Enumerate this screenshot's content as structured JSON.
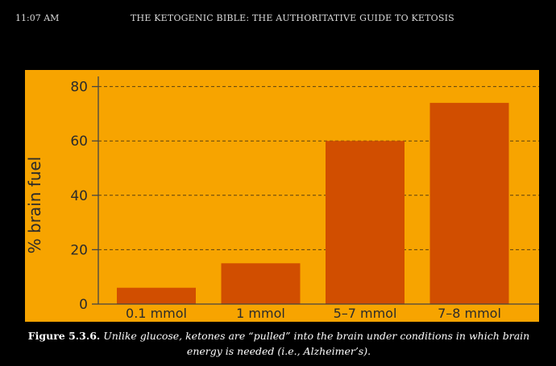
{
  "status_bar": {
    "time": "11:07 AM",
    "book_title": "THE KETOGENIC BIBLE: THE AUTHORITATIVE GUIDE TO KETOSIS"
  },
  "colors": {
    "page_background": "#000000",
    "chart_background": "#f7a400",
    "bar": "#d14e00",
    "text": "#2b2b2b"
  },
  "chart_data": {
    "type": "bar",
    "categories": [
      "0.1 mmol",
      "1 mmol",
      "5–7 mmol",
      "7–8 mmol"
    ],
    "values": [
      6,
      15,
      60,
      74
    ],
    "ylabel": "% brain fuel",
    "ylim": [
      0,
      85
    ],
    "yticks": [
      0,
      20,
      40,
      60,
      80
    ],
    "grid": true
  },
  "caption": {
    "lead": "Figure 5.3.6.",
    "text": " Unlike glucose, ketones are “pulled” into the brain under conditions in which brain energy is needed (i.e., Alzheimer’s)."
  }
}
